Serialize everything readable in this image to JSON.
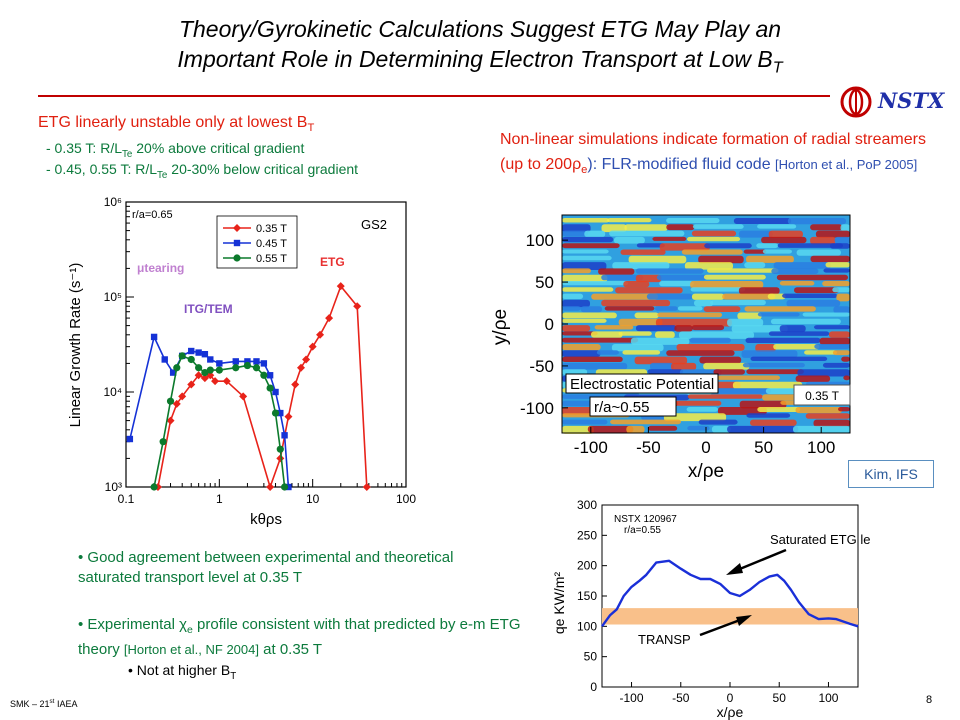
{
  "slide": {
    "title_line1": "Theory/Gyrokinetic Calculations Suggest ETG May Play an",
    "title_line2_main": "Important Role in Determining Electron Transport at Low B",
    "title_line2_sub": "T",
    "logo_text": "NSTX",
    "footer_main": "SMK – 21",
    "footer_sup": "st",
    "footer_rest": " IAEA",
    "page_number": "8"
  },
  "left": {
    "heading_main": "ETG linearly unstable only at lowest B",
    "heading_sub": "T",
    "bullet1_a": "- 0.35 T: R/L",
    "bullet1_sub": "Te",
    "bullet1_b": " 20% above critical gradient",
    "bullet2_a": "- 0.45, 0.55 T: R/L",
    "bullet2_sub": "Te",
    "bullet2_b": " 20-30% below critical gradient"
  },
  "right": {
    "heading_a": "Non-linear simulations indicate formation of radial streamers (up to 200",
    "heading_rho": "ρ",
    "heading_rho_sub": "e",
    "heading_b": "): FLR-modified fluid code ",
    "heading_ref": "[Horton et al., PoP 2005]",
    "credit": "Kim, IFS"
  },
  "bullets": {
    "b1": "Good agreement between experimental and theoretical saturated transport level at 0.35 T",
    "b2_a": "Experimental ",
    "b2_chi": "χ",
    "b2_sub": "e",
    "b2_b": " profile consistent with that predicted by e-m ETG theory ",
    "b2_ref": "[Horton et al., NF 2004]",
    "b2_c": " at 0.35 T",
    "b3_main": "Not at higher B",
    "b3_sub": "T"
  },
  "chart_data": [
    {
      "type": "line",
      "ylabel": "Linear Growth Rate (s⁻¹)",
      "xlabel": "kθρs",
      "xscale": "log",
      "yscale": "log",
      "xlim": [
        0.1,
        100
      ],
      "ylim": [
        1000,
        1000000
      ],
      "x_ticks": [
        "0.1",
        "1",
        "10",
        "100"
      ],
      "y_ticks": [
        "10³",
        "10⁴",
        "10⁵",
        "10⁶"
      ],
      "annotations": [
        "r/a=0.65",
        "GS2",
        "μtearing",
        "ITG/TEM",
        "ETG"
      ],
      "legend_position": "top-center",
      "series": [
        {
          "name": "0.35 T",
          "color": "#e8231a",
          "marker": "diamond",
          "x": [
            0.22,
            0.3,
            0.35,
            0.4,
            0.5,
            0.6,
            0.7,
            0.8,
            0.9,
            1.2,
            1.8,
            3.5,
            4.5,
            5.5,
            6.5,
            7.5,
            8.5,
            10,
            12,
            15,
            20,
            30,
            38
          ],
          "y": [
            1000,
            5000,
            7500,
            9000,
            12000,
            15000,
            14000,
            15000,
            13000,
            13000,
            9000,
            1000,
            2000,
            5500,
            12000,
            18000,
            22000,
            30000,
            40000,
            60000,
            130000,
            80000,
            1000
          ]
        },
        {
          "name": "0.45 T",
          "color": "#1532d6",
          "marker": "square",
          "x": [
            0.11,
            0.2,
            0.26,
            0.32,
            0.4,
            0.5,
            0.6,
            0.7,
            0.8,
            1.0,
            1.5,
            2.0,
            2.5,
            3.0,
            3.5,
            4.0,
            4.5,
            5.0,
            5.5
          ],
          "y": [
            3200,
            38000,
            22000,
            16000,
            24000,
            27000,
            26000,
            25000,
            22000,
            20000,
            21000,
            21000,
            21000,
            20000,
            15000,
            10000,
            6000,
            3500,
            1000
          ]
        },
        {
          "name": "0.55 T",
          "color": "#0c7a2c",
          "marker": "circle",
          "x": [
            0.2,
            0.25,
            0.3,
            0.35,
            0.4,
            0.5,
            0.6,
            0.7,
            0.8,
            1.0,
            1.5,
            2.0,
            2.5,
            3.0,
            3.5,
            4.0,
            4.5,
            5.0
          ],
          "y": [
            1000,
            3000,
            8000,
            18000,
            24000,
            22000,
            18000,
            16000,
            17000,
            17000,
            18000,
            19000,
            18000,
            15000,
            11000,
            6000,
            2500,
            1000
          ]
        }
      ]
    },
    {
      "type": "heatmap",
      "title": "Electrostatic Potential",
      "annotations": [
        "r/a~0.55",
        "0.35 T"
      ],
      "xlabel": "x/ρe",
      "ylabel": "y/ρe",
      "xlim": [
        -125,
        125
      ],
      "ylim": [
        -130,
        130
      ],
      "x_ticks": [
        "-100",
        "-50",
        "0",
        "50",
        "100"
      ],
      "y_ticks": [
        "100",
        "50",
        "0",
        "-50",
        "-100"
      ]
    },
    {
      "type": "line",
      "xlabel": "x/ρe",
      "ylabel": "qe KW/m²",
      "xlim": [
        -130,
        130
      ],
      "ylim": [
        0,
        300
      ],
      "x_ticks": [
        "-100",
        "-50",
        "0",
        "50",
        "100"
      ],
      "y_ticks": [
        "0",
        "50",
        "100",
        "150",
        "200",
        "250",
        "300"
      ],
      "annotations": [
        "NSTX 120967",
        "r/a=0.55",
        "Saturated ETG level",
        "TRANSP"
      ],
      "band": {
        "label": "TRANSP",
        "y_low": 103,
        "y_high": 130,
        "color": "#f9c08a"
      },
      "series": [
        {
          "name": "Saturated ETG level",
          "color": "#1a2fd8",
          "x": [
            -130,
            -122,
            -115,
            -108,
            -100,
            -92,
            -85,
            -75,
            -62,
            -50,
            -40,
            -30,
            -20,
            -10,
            0,
            10,
            20,
            30,
            40,
            48,
            55,
            62,
            70,
            80,
            90,
            100,
            108,
            115,
            122,
            130
          ],
          "y": [
            100,
            118,
            128,
            150,
            165,
            175,
            185,
            205,
            208,
            195,
            185,
            178,
            178,
            170,
            155,
            150,
            160,
            173,
            182,
            185,
            175,
            160,
            140,
            120,
            112,
            113,
            112,
            108,
            104,
            100
          ]
        }
      ]
    }
  ]
}
